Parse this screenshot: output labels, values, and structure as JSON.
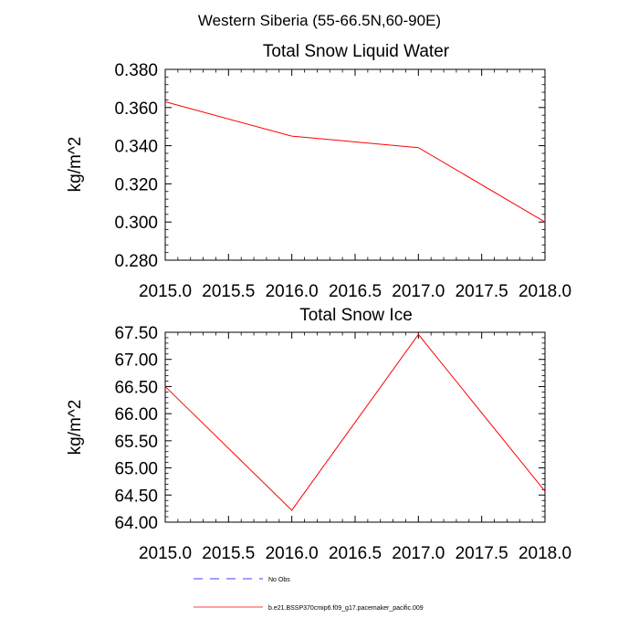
{
  "figure": {
    "title": "Western Siberia (55-66.5N,60-90E)"
  },
  "chart_data": [
    {
      "type": "line",
      "title": "Total Snow Liquid Water",
      "xlabel": "",
      "ylabel": "kg/m^2",
      "xlim": [
        2015.0,
        2018.0
      ],
      "ylim": [
        0.28,
        0.38
      ],
      "xticks": [
        "2015.0",
        "2015.5",
        "2016.0",
        "2016.5",
        "2017.0",
        "2017.5",
        "2018.0"
      ],
      "yticks": [
        "0.280",
        "0.300",
        "0.320",
        "0.340",
        "0.360",
        "0.380"
      ],
      "x": [
        2015.0,
        2016.0,
        2017.0,
        2018.0
      ],
      "series": [
        {
          "name": "b.e21.BSSP370cmip6.f09_g17.pacemaker_pacific.009",
          "color": "#ff0000",
          "values": [
            0.363,
            0.345,
            0.339,
            0.3
          ]
        }
      ]
    },
    {
      "type": "line",
      "title": "Total Snow Ice",
      "xlabel": "",
      "ylabel": "kg/m^2",
      "xlim": [
        2015.0,
        2018.0
      ],
      "ylim": [
        64.0,
        67.5
      ],
      "xticks": [
        "2015.0",
        "2015.5",
        "2016.0",
        "2016.5",
        "2017.0",
        "2017.5",
        "2018.0"
      ],
      "yticks": [
        "64.00",
        "64.50",
        "65.00",
        "65.50",
        "66.00",
        "66.50",
        "67.00",
        "67.50"
      ],
      "x": [
        2015.0,
        2016.0,
        2017.0,
        2018.0
      ],
      "series": [
        {
          "name": "b.e21.BSSP370cmip6.f09_g17.pacemaker_pacific.009",
          "color": "#ff0000",
          "values": [
            66.5,
            64.22,
            67.46,
            64.57
          ]
        }
      ]
    }
  ],
  "legend": {
    "placement": "bottom",
    "items": [
      {
        "label": "No Obs",
        "color": "#0000ff",
        "style": "dashed"
      },
      {
        "label": "b.e21.BSSP370cmip6.f09_g17.pacemaker_pacific.009",
        "color": "#ff0000",
        "style": "solid"
      }
    ]
  }
}
